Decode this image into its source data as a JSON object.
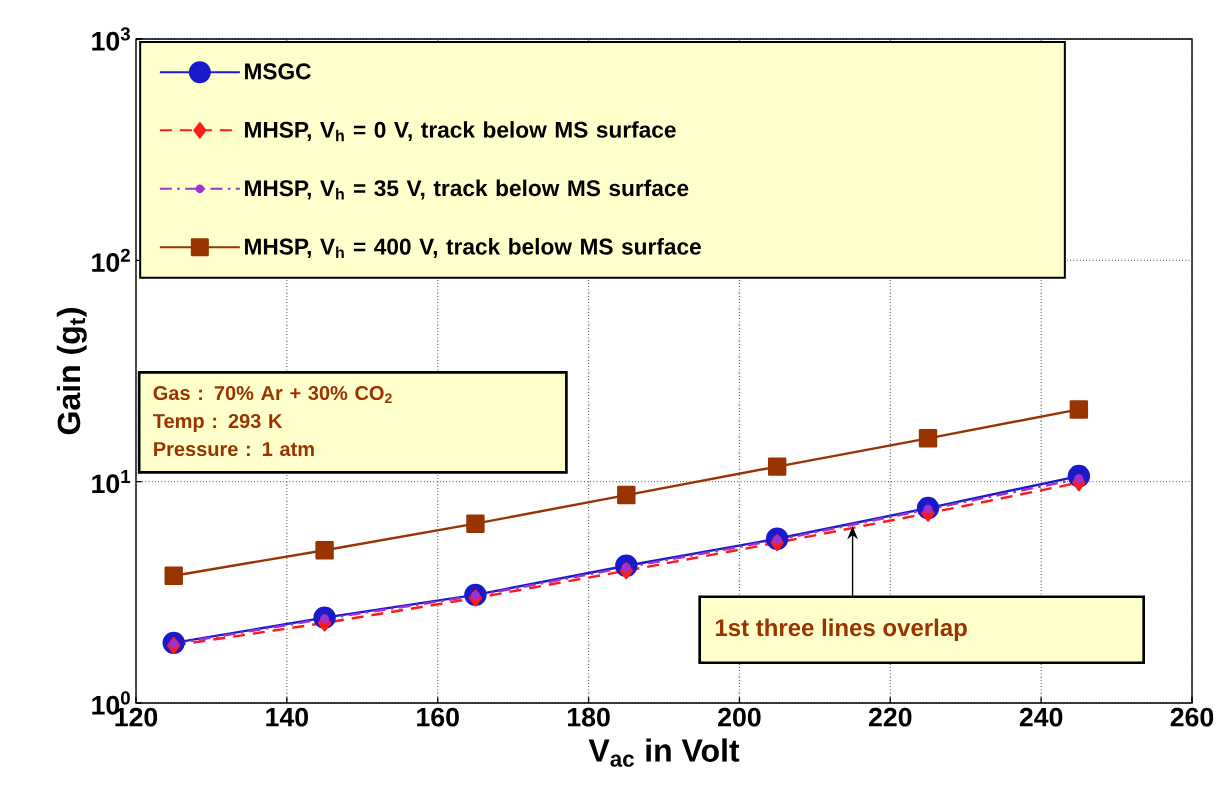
{
  "chart_data": {
    "type": "line",
    "xlabel": "V$_{ac}$ in Volt",
    "ylabel": "Gain (g$_{t}$)",
    "x": [
      125,
      145,
      165,
      185,
      205,
      225,
      245
    ],
    "series": [
      {
        "name": "MSGC",
        "color": "#1a1acc",
        "marker": "circle",
        "line_style": "solid",
        "values": [
          1.87,
          2.43,
          3.08,
          4.17,
          5.52,
          7.6,
          10.6
        ]
      },
      {
        "name": "MHSP, V$_{h}$ = 0 V, track below MS surface",
        "color": "#ff1a1a",
        "marker": "diamond",
        "line_style": "dashed",
        "values": [
          1.82,
          2.3,
          2.98,
          3.96,
          5.3,
          7.2,
          9.9
        ]
      },
      {
        "name": "MHSP, V$_{h}$ = 35 V, track below MS surface",
        "color": "#a033cc",
        "marker": "circle",
        "line_style": "dashdot",
        "values": [
          1.85,
          2.4,
          3.05,
          4.1,
          5.45,
          7.5,
          10.3
        ]
      },
      {
        "name": "MHSP, V$_{h}$ = 400 V, track below MS surface",
        "color": "#993300",
        "marker": "square",
        "line_style": "solid",
        "values": [
          3.76,
          4.9,
          6.46,
          8.7,
          11.7,
          15.7,
          21.2
        ]
      }
    ],
    "xlim": [
      120,
      260
    ],
    "ylim": [
      1,
      1000
    ],
    "xticks": [
      120,
      140,
      160,
      180,
      200,
      220,
      240,
      260
    ],
    "yticks": [
      {
        "value": 1,
        "label": "10$^{0}$"
      },
      {
        "value": 10,
        "label": "10$^{1}$"
      },
      {
        "value": 100,
        "label": "10$^{2}$"
      },
      {
        "value": 1000,
        "label": "10$^{3}$"
      }
    ],
    "log": "y",
    "grid": true,
    "legend": "top left",
    "annotations": [
      "Gas : 70% Ar + 30% CO$_{2}$",
      "Temp : 293 K",
      "Pressure : 1 atm",
      {
        "text": "1st three lines overlap",
        "x": 215,
        "y": 6.3
      }
    ]
  }
}
